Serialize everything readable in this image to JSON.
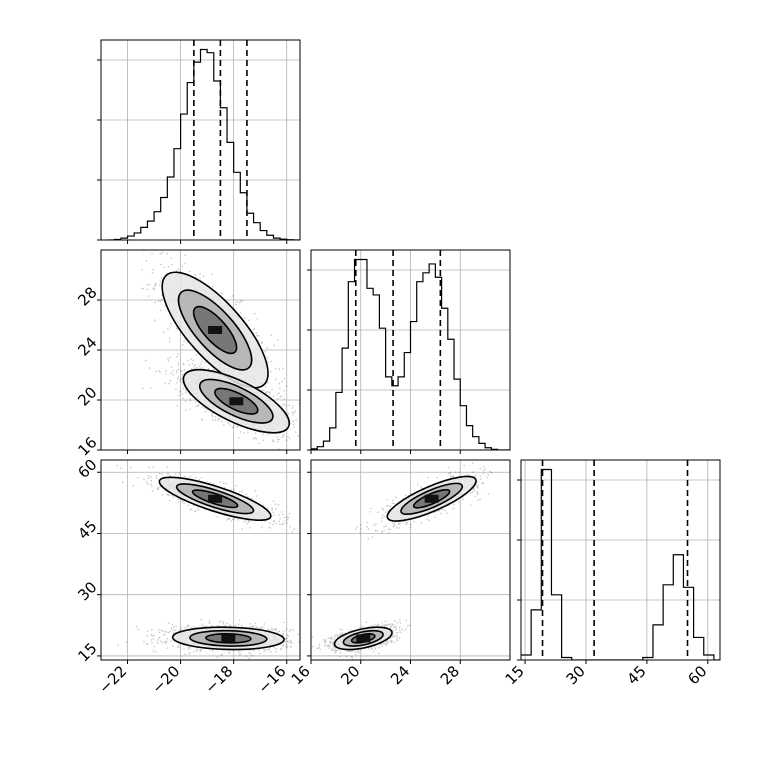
{
  "chart_data": {
    "type": "corner",
    "grid": true,
    "parameters": [
      "",
      "",
      ""
    ],
    "ranges": [
      [
        -23,
        -15.5
      ],
      [
        16,
        32
      ],
      [
        14,
        63
      ]
    ],
    "ticks": [
      {
        "values": [
          -22,
          -20,
          -18,
          -16
        ],
        "labels": [
          "−22",
          "−20",
          "−18",
          "−16"
        ]
      },
      {
        "values": [
          16,
          20,
          24,
          28
        ],
        "labels": [
          "16",
          "20",
          "24",
          "28"
        ]
      },
      {
        "values": [
          15,
          30,
          45,
          60
        ],
        "labels": [
          "15",
          "30",
          "45",
          "60"
        ]
      }
    ],
    "quantiles": [
      [
        -19.5,
        -18.5,
        -17.5
      ],
      [
        19.6,
        22.6,
        26.4
      ],
      [
        19.3,
        32.0,
        55.0
      ]
    ],
    "histograms": [
      {
        "bins": [
          -22.75,
          -22.5,
          -22.25,
          -22.0,
          -21.75,
          -21.5,
          -21.25,
          -21.0,
          -20.75,
          -20.5,
          -20.25,
          -20.0,
          -19.75,
          -19.5,
          -19.25,
          -19.0,
          -18.75,
          -18.5,
          -18.25,
          -18.0,
          -17.75,
          -17.5,
          -17.25,
          -17.0,
          -16.75,
          -16.5,
          -16.25,
          -16.0,
          -15.75,
          -15.5
        ],
        "counts": [
          0,
          0.3,
          1.2,
          2.5,
          4.5,
          8,
          12,
          18,
          27,
          40,
          58,
          80,
          100,
          113,
          121,
          119,
          101,
          84,
          62,
          43,
          30,
          17,
          11,
          6,
          3,
          1.2,
          0.5,
          0.2,
          0
        ]
      },
      {
        "bins": [
          16,
          16.5,
          17,
          17.5,
          18,
          18.5,
          19,
          19.5,
          20,
          20.5,
          21,
          21.5,
          22,
          22.5,
          23,
          23.5,
          24,
          24.5,
          25,
          25.5,
          26,
          26.5,
          27,
          27.5,
          28,
          28.5,
          29,
          29.5,
          30,
          30.5,
          31,
          31.5,
          32
        ],
        "counts": [
          0.5,
          1.5,
          4,
          10,
          26,
          46,
          76,
          86,
          86,
          73,
          70,
          55,
          33,
          29,
          33,
          44,
          58,
          76,
          80,
          84,
          78,
          64,
          50,
          32,
          20,
          11,
          6,
          3,
          1,
          0.3,
          0,
          0
        ]
      },
      {
        "bins": [
          14,
          16.5,
          19,
          21.5,
          24,
          26.5,
          29,
          31.5,
          34,
          36.5,
          39,
          41.5,
          44,
          46.5,
          49,
          51.5,
          54,
          56.5,
          59,
          61.5,
          63
        ],
        "counts": [
          2,
          20,
          76,
          26,
          1,
          0,
          0,
          0,
          0,
          0,
          0,
          0,
          1,
          14,
          30,
          42,
          29,
          9,
          2,
          0
        ]
      }
    ],
    "joint": [
      {
        "x_param": 0,
        "y_param": 1,
        "modes": [
          {
            "cx": -18.7,
            "cy": 25.6,
            "sx": 0.95,
            "sy": 2.2,
            "rho": -0.75,
            "weight": 1.0
          },
          {
            "cx": -17.9,
            "cy": 19.9,
            "sx": 0.95,
            "sy": 1.2,
            "rho": -0.7,
            "weight": 1.3
          }
        ]
      },
      {
        "x_param": 0,
        "y_param": 2,
        "modes": [
          {
            "cx": -18.7,
            "cy": 53.5,
            "sx": 1.0,
            "sy": 2.5,
            "rho": -0.8,
            "weight": 1.0
          },
          {
            "cx": -18.2,
            "cy": 19.3,
            "sx": 1.0,
            "sy": 1.3,
            "rho": -0.1,
            "weight": 1.4
          }
        ]
      },
      {
        "x_param": 1,
        "y_param": 2,
        "modes": [
          {
            "cx": 25.7,
            "cy": 53.5,
            "sx": 1.7,
            "sy": 2.6,
            "rho": 0.8,
            "weight": 1.0
          },
          {
            "cx": 20.2,
            "cy": 19.3,
            "sx": 1.1,
            "sy": 1.3,
            "rho": 0.5,
            "weight": 1.4
          }
        ]
      }
    ]
  }
}
